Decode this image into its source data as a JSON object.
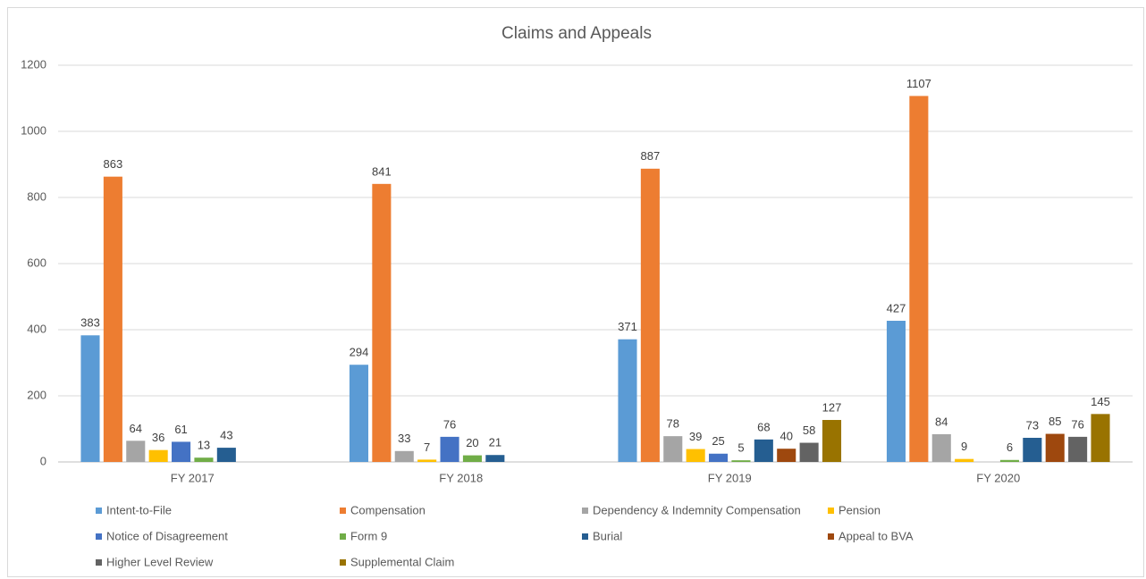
{
  "chart_data": {
    "type": "bar",
    "title": "Claims and Appeals",
    "categories": [
      "FY 2017",
      "FY 2018",
      "FY 2019",
      "FY 2020"
    ],
    "series": [
      {
        "name": "Intent-to-File",
        "color": "#5b9bd5",
        "values": [
          383,
          294,
          371,
          427
        ]
      },
      {
        "name": "Compensation",
        "color": "#ed7d31",
        "values": [
          863,
          841,
          887,
          1107
        ]
      },
      {
        "name": "Dependency & Indemnity Compensation",
        "color": "#a5a5a5",
        "values": [
          64,
          33,
          78,
          84
        ]
      },
      {
        "name": "Pension",
        "color": "#ffc000",
        "values": [
          36,
          7,
          39,
          9
        ]
      },
      {
        "name": "Notice of Disagreement",
        "color": "#4472c4",
        "values": [
          61,
          76,
          25,
          null
        ]
      },
      {
        "name": "Form 9",
        "color": "#70ad47",
        "values": [
          13,
          20,
          5,
          6
        ]
      },
      {
        "name": "Burial",
        "color": "#255e91",
        "values": [
          43,
          21,
          68,
          73
        ]
      },
      {
        "name": "Appeal to BVA",
        "color": "#9e480e",
        "values": [
          null,
          null,
          40,
          85
        ]
      },
      {
        "name": "Higher Level Review",
        "color": "#636363",
        "values": [
          null,
          null,
          58,
          76
        ]
      },
      {
        "name": "Supplemental Claim",
        "color": "#997300",
        "values": [
          null,
          null,
          127,
          145
        ]
      }
    ],
    "ylim": [
      0,
      1200
    ],
    "yticks": [
      0,
      200,
      400,
      600,
      800,
      1000,
      1200
    ],
    "grid": true,
    "legend": "bottom"
  }
}
